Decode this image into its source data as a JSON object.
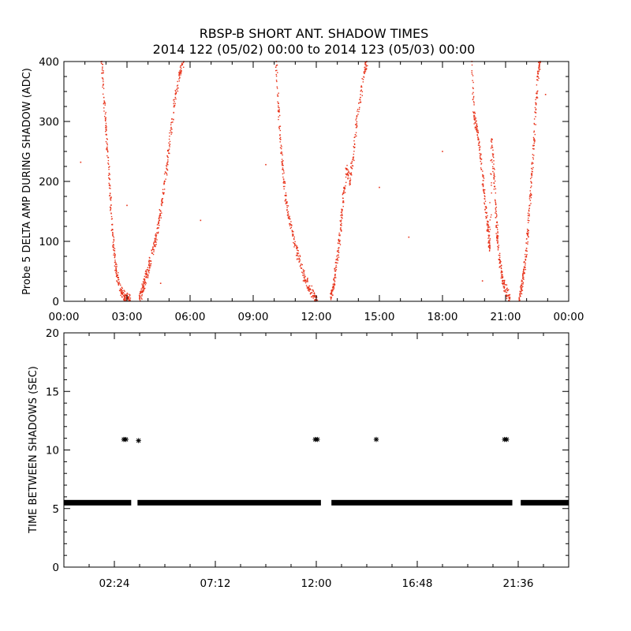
{
  "title_line1": "RBSP-B SHORT ANT. SHADOW TIMES",
  "title_line2": "2014 122 (05/02) 00:00 to 2014 123 (05/03) 00:00",
  "colors": {
    "points_top": "#e8331a",
    "points_bottom": "#000000",
    "frame": "#000000"
  },
  "chart_data": [
    {
      "type": "scatter",
      "ylabel": "Probe 5 DELTA AMP DURING SHADOW (ADC)",
      "xlabel": "",
      "xlim_hours": [
        0,
        24
      ],
      "ylim": [
        0,
        400
      ],
      "x_ticks": [
        "00:00",
        "03:00",
        "06:00",
        "09:00",
        "12:00",
        "15:00",
        "18:00",
        "21:00",
        "00:00"
      ],
      "y_ticks": [
        "0",
        "100",
        "200",
        "300",
        "400"
      ],
      "marker": "dot",
      "series": [
        {
          "points_hours_adc": [
            [
              1.8,
              400
            ],
            [
              1.9,
              340
            ],
            [
              2.0,
              290
            ],
            [
              2.1,
              240
            ],
            [
              2.2,
              180
            ],
            [
              2.3,
              120
            ],
            [
              2.4,
              80
            ],
            [
              2.5,
              50
            ],
            [
              2.6,
              30
            ],
            [
              2.75,
              15
            ],
            [
              2.9,
              8
            ],
            [
              3.05,
              4
            ],
            [
              3.15,
              2
            ],
            [
              3.6,
              5
            ],
            [
              3.7,
              15
            ],
            [
              3.8,
              25
            ],
            [
              3.9,
              40
            ],
            [
              4.05,
              60
            ],
            [
              4.2,
              80
            ],
            [
              4.35,
              100
            ],
            [
              4.5,
              130
            ],
            [
              4.65,
              160
            ],
            [
              4.8,
              200
            ],
            [
              4.95,
              240
            ],
            [
              5.1,
              290
            ],
            [
              5.3,
              340
            ],
            [
              5.5,
              380
            ],
            [
              5.7,
              400
            ],
            [
              0.8,
              232
            ],
            [
              3.0,
              160
            ],
            [
              4.6,
              30
            ],
            [
              6.5,
              135
            ],
            [
              9.6,
              228
            ],
            [
              10.1,
              400
            ],
            [
              10.2,
              330
            ],
            [
              10.3,
              270
            ],
            [
              10.4,
              220
            ],
            [
              10.55,
              170
            ],
            [
              10.7,
              140
            ],
            [
              10.9,
              110
            ],
            [
              11.1,
              80
            ],
            [
              11.3,
              55
            ],
            [
              11.5,
              35
            ],
            [
              11.7,
              20
            ],
            [
              11.9,
              8
            ],
            [
              12.05,
              2
            ],
            [
              12.7,
              5
            ],
            [
              12.8,
              20
            ],
            [
              12.9,
              45
            ],
            [
              13.0,
              70
            ],
            [
              13.1,
              100
            ],
            [
              13.2,
              140
            ],
            [
              13.3,
              180
            ],
            [
              13.45,
              220
            ],
            [
              13.6,
              200
            ],
            [
              13.75,
              240
            ],
            [
              13.9,
              290
            ],
            [
              14.1,
              340
            ],
            [
              14.3,
              390
            ],
            [
              14.4,
              400
            ],
            [
              15.0,
              190
            ],
            [
              16.4,
              107
            ],
            [
              18.0,
              250
            ],
            [
              19.4,
              400
            ],
            [
              19.5,
              310
            ],
            [
              19.6,
              290
            ],
            [
              19.75,
              265
            ],
            [
              19.85,
              220
            ],
            [
              20.0,
              180
            ],
            [
              20.1,
              140
            ],
            [
              20.2,
              110
            ],
            [
              20.25,
              90
            ],
            [
              20.35,
              270
            ],
            [
              20.45,
              210
            ],
            [
              20.55,
              150
            ],
            [
              20.6,
              110
            ],
            [
              20.7,
              70
            ],
            [
              20.8,
              50
            ],
            [
              20.9,
              30
            ],
            [
              21.05,
              15
            ],
            [
              21.2,
              4
            ],
            [
              21.65,
              5
            ],
            [
              21.75,
              20
            ],
            [
              21.85,
              40
            ],
            [
              21.95,
              70
            ],
            [
              22.05,
              110
            ],
            [
              22.15,
              160
            ],
            [
              22.25,
              210
            ],
            [
              22.35,
              270
            ],
            [
              22.45,
              330
            ],
            [
              22.55,
              380
            ],
            [
              22.65,
              400
            ],
            [
              19.9,
              34
            ],
            [
              22.9,
              345
            ]
          ]
        }
      ]
    },
    {
      "type": "scatter",
      "ylabel": "TIME BETWEEN SHADOWS (SEC)",
      "xlabel": "",
      "xlim_hours": [
        0,
        24
      ],
      "ylim": [
        0,
        20
      ],
      "x_ticks": [
        "02:24",
        "07:12",
        "12:00",
        "16:48",
        "21:36"
      ],
      "y_ticks": [
        "0",
        "5",
        "10",
        "15",
        "20"
      ],
      "marker": "asterisk",
      "baseline_value": 5.5,
      "gaps_hours": [
        [
          3.2,
          3.5
        ],
        [
          12.2,
          12.7
        ],
        [
          21.3,
          21.7
        ]
      ],
      "outliers_hours_sec": [
        [
          2.85,
          10.9
        ],
        [
          2.95,
          10.9
        ],
        [
          3.55,
          10.8
        ],
        [
          11.95,
          10.9
        ],
        [
          12.05,
          10.9
        ],
        [
          14.85,
          10.9
        ],
        [
          20.95,
          10.9
        ],
        [
          21.05,
          10.9
        ]
      ]
    }
  ]
}
